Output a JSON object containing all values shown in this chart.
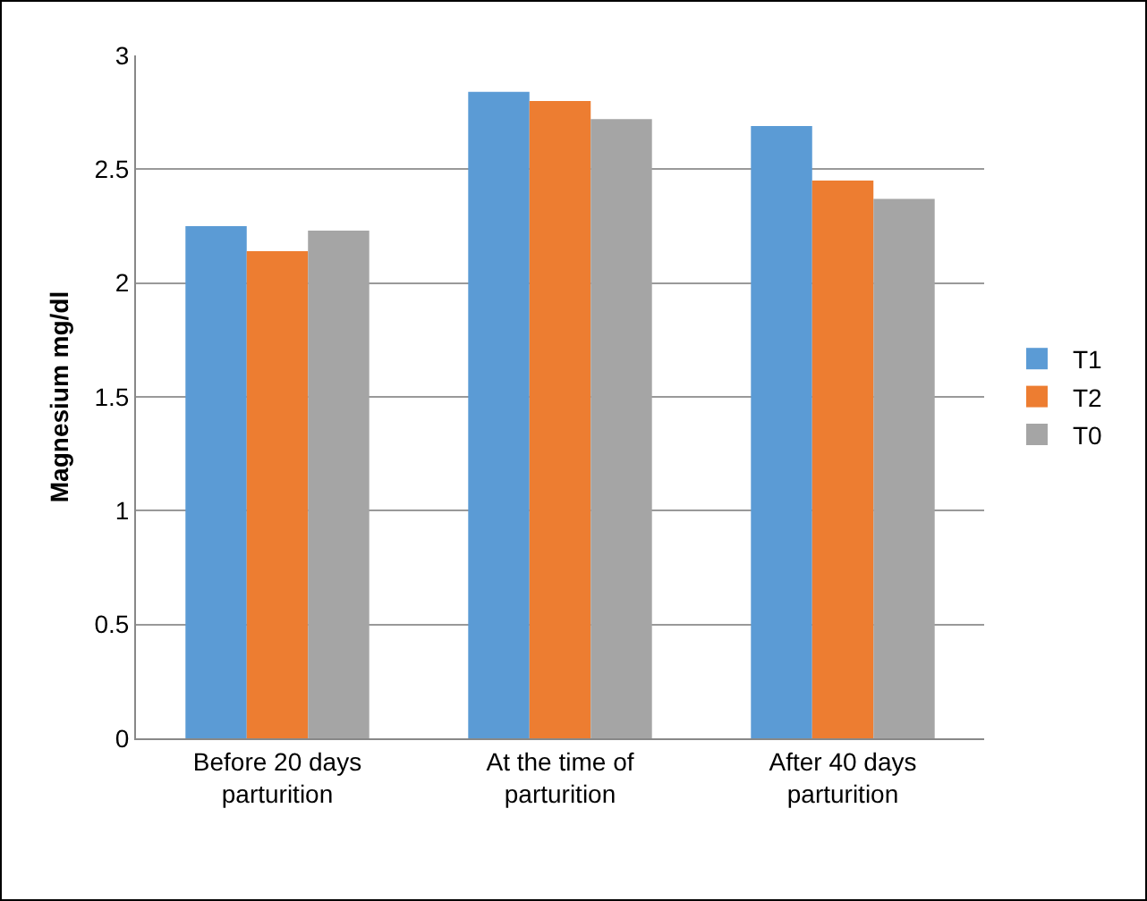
{
  "chart_data": {
    "type": "bar",
    "ylabel": "Magnesium mg/dl",
    "categories": [
      "Before 20 days parturition",
      "At the time of parturition",
      "After 40 days parturition"
    ],
    "series": [
      {
        "name": "T1",
        "color": "#5b9bd5",
        "values": [
          2.25,
          2.84,
          2.69
        ]
      },
      {
        "name": "T2",
        "color": "#ed7d31",
        "values": [
          2.14,
          2.8,
          2.45
        ]
      },
      {
        "name": "T0",
        "color": "#a5a5a5",
        "values": [
          2.23,
          2.72,
          2.37
        ]
      }
    ],
    "ylim": [
      0,
      3
    ],
    "yticks": [
      0,
      0.5,
      1,
      1.5,
      2,
      2.5,
      3
    ],
    "grid": "y",
    "legend": "right"
  }
}
